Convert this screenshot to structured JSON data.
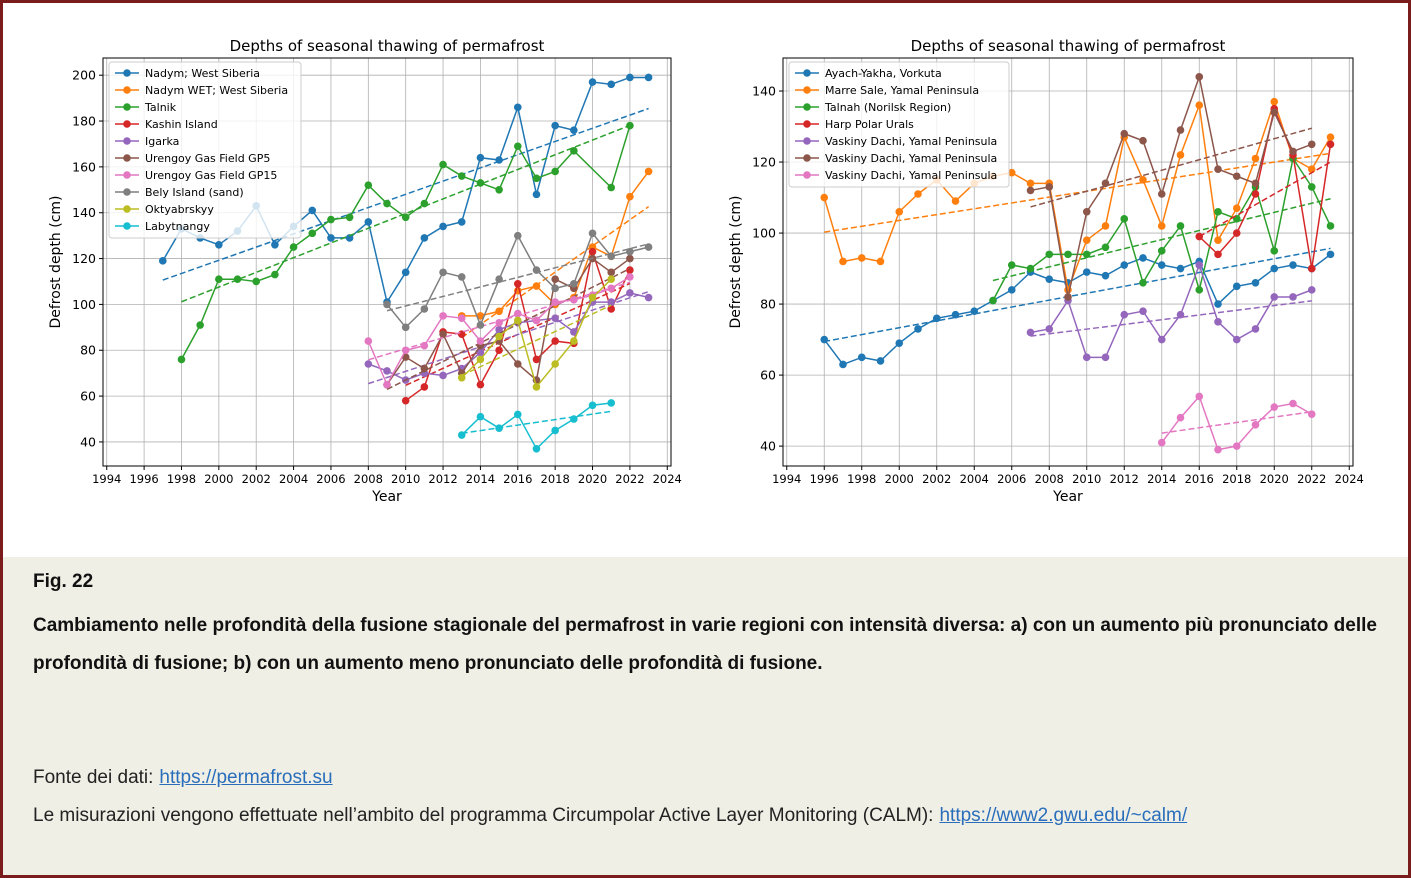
{
  "chart_data": [
    {
      "type": "line",
      "title": "Depths of seasonal thawing of permafrost",
      "x_label": "Year",
      "y_label": "Defrost depth (cm)",
      "xlim": [
        1993.8,
        2024.2
      ],
      "ylim": [
        29.5,
        207.5
      ],
      "xticks": [
        1994,
        1996,
        1998,
        2000,
        2002,
        2004,
        2006,
        2008,
        2010,
        2012,
        2014,
        2016,
        2018,
        2020,
        2022,
        2024
      ],
      "yticks": [
        40,
        60,
        80,
        100,
        120,
        140,
        160,
        180,
        200
      ],
      "grid": true,
      "legend": "upper left",
      "trendlines": true,
      "series": [
        {
          "name": "Nadym; West Siberia",
          "color": "#1f77b4",
          "x": [
            1997,
            1998,
            1999,
            2000,
            2001,
            2002,
            2003,
            2004,
            2005,
            2006,
            2007,
            2008,
            2009,
            2010,
            2011,
            2012,
            2013,
            2014,
            2015,
            2016,
            2017,
            2018,
            2019,
            2020,
            2021,
            2022,
            2023
          ],
          "values": [
            119,
            133,
            129,
            126,
            132,
            143,
            126,
            134,
            141,
            129,
            129,
            136,
            101,
            114,
            129,
            134,
            136,
            164,
            163,
            186,
            148,
            178,
            176,
            197,
            196,
            199,
            199
          ]
        },
        {
          "name": "Nadym WET; West Siberia",
          "color": "#ff7f0e",
          "x": [
            2013,
            2014,
            2015,
            2016,
            2017,
            2018,
            2019,
            2020,
            2021,
            2022,
            2023
          ],
          "values": [
            95,
            95,
            97,
            106,
            108,
            100,
            103,
            125,
            121,
            147,
            158
          ]
        },
        {
          "name": "Talnik",
          "color": "#2ca02c",
          "x": [
            1998,
            1999,
            2000,
            2001,
            2002,
            2003,
            2004,
            2005,
            2006,
            2007,
            2008,
            2009,
            2010,
            2011,
            2012,
            2013,
            2014,
            2015,
            2016,
            2017,
            2018,
            2019,
            2021,
            2022
          ],
          "values": [
            76,
            91,
            111,
            111,
            110,
            113,
            125,
            131,
            137,
            138,
            152,
            144,
            138,
            144,
            161,
            156,
            153,
            150,
            169,
            155,
            158,
            167,
            151,
            178
          ]
        },
        {
          "name": "Kashin Island",
          "color": "#d62728",
          "x": [
            2010,
            2011,
            2012,
            2013,
            2014,
            2015,
            2016,
            2017,
            2018,
            2019,
            2020,
            2021,
            2022
          ],
          "values": [
            58,
            64,
            88,
            87,
            65,
            80,
            109,
            76,
            84,
            83,
            123,
            98,
            115
          ]
        },
        {
          "name": "Igarka",
          "color": "#9467bd",
          "x": [
            2008,
            2009,
            2010,
            2011,
            2012,
            2013,
            2014,
            2015,
            2016,
            2017,
            2018,
            2019,
            2020,
            2021,
            2022,
            2023
          ],
          "values": [
            74,
            71,
            67,
            70,
            69,
            72,
            79,
            89,
            92,
            93,
            94,
            88,
            101,
            101,
            105,
            103
          ]
        },
        {
          "name": "Urengoy Gas Field GP5",
          "color": "#8c564b",
          "x": [
            2009,
            2010,
            2011,
            2012,
            2013,
            2014,
            2015,
            2016,
            2017,
            2018,
            2019,
            2020,
            2021,
            2022
          ],
          "values": [
            65,
            77,
            72,
            87,
            70,
            82,
            84,
            74,
            67,
            111,
            107,
            120,
            114,
            120
          ]
        },
        {
          "name": "Urengoy Gas Field GP15",
          "color": "#e377c2",
          "x": [
            2008,
            2009,
            2010,
            2011,
            2012,
            2013,
            2014,
            2015,
            2016,
            2017,
            2018,
            2019,
            2020,
            2021,
            2022
          ],
          "values": [
            84,
            65,
            80,
            82,
            95,
            94,
            84,
            92,
            96,
            93,
            101,
            102,
            104,
            107,
            112
          ]
        },
        {
          "name": "Bely Island (sand)",
          "color": "#7f7f7f",
          "x": [
            2009,
            2010,
            2011,
            2012,
            2013,
            2014,
            2015,
            2016,
            2017,
            2018,
            2019,
            2020,
            2021,
            2022,
            2023
          ],
          "values": [
            100,
            90,
            98,
            114,
            112,
            91,
            111,
            130,
            115,
            107,
            109,
            131,
            121,
            123,
            125
          ]
        },
        {
          "name": "Oktyabrskyy",
          "color": "#bcbd22",
          "x": [
            2013,
            2014,
            2015,
            2016,
            2017,
            2018,
            2019,
            2020,
            2021
          ],
          "values": [
            68,
            76,
            86,
            93,
            64,
            74,
            84,
            103,
            111
          ]
        },
        {
          "name": "Labytnangy",
          "color": "#17becf",
          "x": [
            2013,
            2014,
            2015,
            2016,
            2017,
            2018,
            2019,
            2020,
            2021
          ],
          "values": [
            43,
            51,
            46,
            52,
            37,
            45,
            50,
            56,
            57
          ]
        }
      ]
    },
    {
      "type": "line",
      "title": "Depths of seasonal thawing of permafrost",
      "x_label": "Year",
      "y_label": "Defrost depth (cm)",
      "xlim": [
        1993.8,
        2024.2
      ],
      "ylim": [
        34.4,
        149.3
      ],
      "xticks": [
        1994,
        1996,
        1998,
        2000,
        2002,
        2004,
        2006,
        2008,
        2010,
        2012,
        2014,
        2016,
        2018,
        2020,
        2022,
        2024
      ],
      "yticks": [
        40,
        60,
        80,
        100,
        120,
        140
      ],
      "grid": true,
      "legend": "upper left",
      "trendlines": true,
      "series": [
        {
          "name": "Ayach-Yakha, Vorkuta",
          "color": "#1f77b4",
          "x": [
            1996,
            1997,
            1998,
            1999,
            2000,
            2001,
            2002,
            2003,
            2004,
            2005,
            2006,
            2007,
            2008,
            2009,
            2010,
            2011,
            2012,
            2013,
            2014,
            2015,
            2016,
            2017,
            2018,
            2019,
            2020,
            2021,
            2022,
            2023
          ],
          "values": [
            70,
            63,
            65,
            64,
            69,
            73,
            76,
            77,
            78,
            81,
            84,
            89,
            87,
            86,
            89,
            88,
            91,
            93,
            91,
            90,
            92,
            80,
            85,
            86,
            90,
            91,
            90,
            94
          ]
        },
        {
          "name": "Marre Sale, Yamal Peninsula",
          "color": "#ff7f0e",
          "x": [
            1996,
            1997,
            1998,
            1999,
            2000,
            2001,
            2002,
            2003,
            2004,
            2005,
            2006,
            2007,
            2008,
            2009,
            2010,
            2011,
            2012,
            2013,
            2014,
            2015,
            2016,
            2017,
            2018,
            2019,
            2020,
            2021,
            2022,
            2023
          ],
          "values": [
            110,
            92,
            93,
            92,
            106,
            111,
            115,
            109,
            114,
            116,
            117,
            114,
            114,
            84,
            98,
            102,
            127,
            115,
            102,
            122,
            136,
            98,
            107,
            121,
            137,
            121,
            118,
            127
          ]
        },
        {
          "name": "Talnah (Norilsk Region)",
          "color": "#2ca02c",
          "x": [
            2005,
            2006,
            2007,
            2008,
            2009,
            2010,
            2011,
            2012,
            2013,
            2014,
            2015,
            2016,
            2017,
            2018,
            2019,
            2020,
            2021,
            2022,
            2023
          ],
          "values": [
            81,
            91,
            90,
            94,
            94,
            94,
            96,
            104,
            86,
            95,
            102,
            84,
            106,
            104,
            113,
            95,
            121,
            113,
            102
          ]
        },
        {
          "name": "Harp Polar Urals",
          "color": "#d62728",
          "x": [
            2016,
            2017,
            2018,
            2019,
            2020,
            2021,
            2022,
            2023
          ],
          "values": [
            99,
            94,
            100,
            111,
            135,
            122,
            90,
            125
          ]
        },
        {
          "name": "Vaskiny Dachi, Yamal Peninsula",
          "color": "#9467bd",
          "x": [
            2007,
            2008,
            2009,
            2010,
            2011,
            2012,
            2013,
            2014,
            2015,
            2016,
            2017,
            2018,
            2019,
            2020,
            2021,
            2022
          ],
          "values": [
            72,
            73,
            81,
            65,
            65,
            77,
            78,
            70,
            77,
            91,
            75,
            70,
            73,
            82,
            82,
            84
          ]
        },
        {
          "name": "Vaskiny Dachi, Yamal Peninsula",
          "color": "#8c564b",
          "x": [
            2007,
            2008,
            2009,
            2010,
            2011,
            2012,
            2013,
            2014,
            2015,
            2016,
            2017,
            2018,
            2019,
            2020,
            2021,
            2022
          ],
          "values": [
            112,
            113,
            82,
            106,
            114,
            128,
            126,
            111,
            129,
            144,
            118,
            116,
            114,
            134,
            123,
            125
          ]
        },
        {
          "name": "Vaskiny Dachi, Yamal Peninsula",
          "color": "#e377c2",
          "x": [
            2014,
            2015,
            2016,
            2017,
            2018,
            2019,
            2020,
            2021,
            2022
          ],
          "values": [
            41,
            48,
            54,
            39,
            40,
            46,
            51,
            52,
            49
          ]
        }
      ]
    }
  ],
  "caption": {
    "figure": "Fig.  22",
    "text": "Cambiamento nelle profondità della fusione stagionale del permafrost in varie regioni con intensità diversa: a) con un aumento più pronunciato delle profondità di fusione; b) con un aumento meno pronunciato delle profondità di fusione.",
    "source_label": "Fonte dei dati:",
    "source_link": "https://permafrost.su",
    "note": "Le misurazioni vengono effettuate nell’ambito del programma Circumpolar Active Layer Monitoring (CALM):",
    "note_link": "https://www2.gwu.edu/~calm/"
  }
}
